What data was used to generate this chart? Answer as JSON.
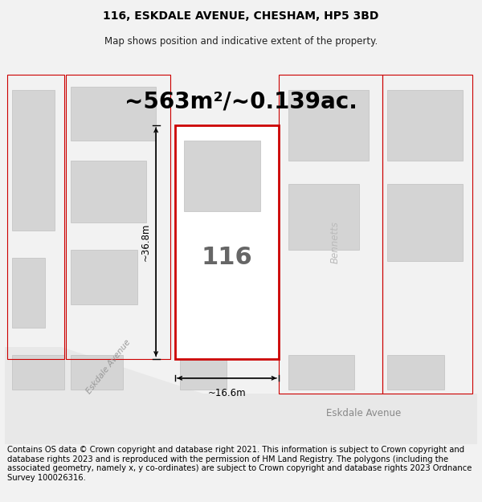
{
  "title": "116, ESKDALE AVENUE, CHESHAM, HP5 3BD",
  "subtitle": "Map shows position and indicative extent of the property.",
  "area_text": "~563m²/~0.139ac.",
  "number_text": "116",
  "dim_width": "~16.6m",
  "dim_height": "~36.8m",
  "road_label_diagonal": "Eskdale Avenue",
  "road_label_bottom": "Eskdale Avenue",
  "road_label_right": "Bennetts",
  "footer": "Contains OS data © Crown copyright and database right 2021. This information is subject to Crown copyright and database rights 2023 and is reproduced with the permission of HM Land Registry. The polygons (including the associated geometry, namely x, y co-ordinates) are subject to Crown copyright and database rights 2023 Ordnance Survey 100026316.",
  "bg_color": "#f2f2f2",
  "map_bg": "#ffffff",
  "plot_color": "#cc0000",
  "building_fill": "#d4d4d4",
  "building_edge": "#c0c0c0",
  "road_fill": "#e8e8e8",
  "title_fontsize": 10,
  "subtitle_fontsize": 8.5,
  "footer_fontsize": 7.2,
  "area_fontsize": 20,
  "number_fontsize": 22,
  "dim_fontsize": 8.5,
  "road_fontsize": 8.5,
  "road_diag_fontsize": 7.5
}
